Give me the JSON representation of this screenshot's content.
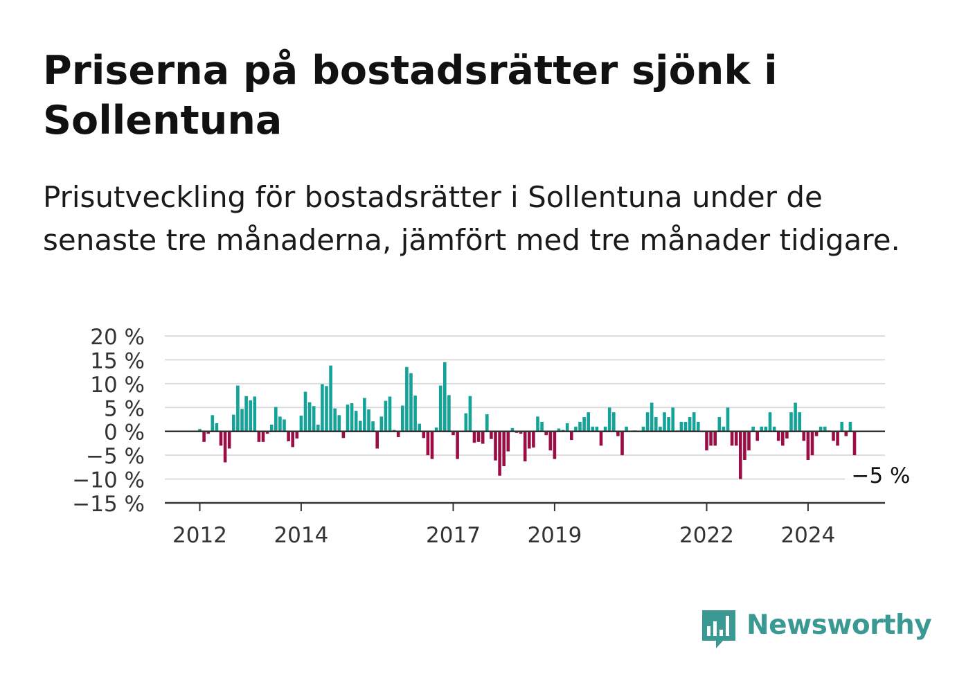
{
  "title": "Priserna på bostadsrätter sjönk i Sollentuna",
  "subtitle": "Prisutveckling för bostadsrätter i Sollentuna under de senaste tre månaderna, jämfört med tre månader tidigare.",
  "brand": {
    "name": "Newsworthy",
    "color": "#3a9a93",
    "icon": "newsworthy-bar-chart-icon"
  },
  "colors": {
    "positive": "#13a399",
    "negative": "#9b0d45",
    "grid": "#dcdcdc",
    "axis": "#333333"
  },
  "chart_data": {
    "type": "bar",
    "x_start": "2012-01",
    "x_step": "month",
    "ylim": [
      -15,
      20
    ],
    "yticks": [
      -15,
      -10,
      -5,
      0,
      5,
      10,
      15,
      20
    ],
    "ytick_labels": [
      "−15 %",
      "−10 %",
      "−5 %",
      "0 %",
      "5 %",
      "10 %",
      "15 %",
      "20 %"
    ],
    "xticks": [
      "2012",
      "2014",
      "2017",
      "2019",
      "2022",
      "2024"
    ],
    "grid": true,
    "annotation": {
      "text": "−5 %",
      "value": -5,
      "target": "last"
    },
    "values": [
      0.5,
      -2.2,
      -0.5,
      3.4,
      1.7,
      -3.0,
      -6.5,
      -3.6,
      3.5,
      9.6,
      4.7,
      7.4,
      6.5,
      7.3,
      -2.2,
      -2.2,
      -0.5,
      1.4,
      5.1,
      3.1,
      2.5,
      -2.1,
      -3.3,
      -1.5,
      3.3,
      8.3,
      6.1,
      5.3,
      1.4,
      9.9,
      9.5,
      13.8,
      4.8,
      3.4,
      -1.4,
      5.6,
      5.9,
      4.3,
      2.2,
      7.0,
      4.6,
      2.1,
      -3.6,
      3.1,
      6.4,
      7.3,
      0.3,
      -1.2,
      5.4,
      13.5,
      12.2,
      7.5,
      1.6,
      -1.4,
      -5.0,
      -5.8,
      0.8,
      9.6,
      14.5,
      7.6,
      -0.8,
      -5.8,
      0.1,
      3.8,
      7.4,
      -2.4,
      -2.2,
      -2.6,
      3.6,
      -1.6,
      -6.1,
      -9.3,
      -7.3,
      -4.2,
      0.7,
      -0.3,
      -0.5,
      -6.3,
      -3.6,
      -3.4,
      3.1,
      2.0,
      -0.8,
      -4.0,
      -5.8,
      0.6,
      0.3,
      1.7,
      -1.8,
      1.0,
      2.0,
      3.0,
      4.0,
      1.0,
      1.0,
      -3.0,
      1.0,
      5.0,
      4.0,
      -1.0,
      -5.0,
      1.0,
      0.1,
      0.2,
      0.1,
      1.0,
      4.0,
      6.0,
      3.0,
      1.0,
      4.0,
      3.0,
      5.0,
      0.2,
      2.0,
      2.0,
      3.0,
      4.0,
      2.0,
      -0.2,
      -4.0,
      -3.0,
      -3.0,
      3.0,
      1.0,
      5.0,
      -3.0,
      -3.0,
      -10.0,
      -6.0,
      -4.0,
      1.0,
      -2.0,
      1.0,
      1.0,
      4.0,
      1.0,
      -2.0,
      -3.0,
      -1.5,
      4.0,
      6.0,
      4.0,
      -2.0,
      -6.0,
      -5.0,
      -1.0,
      1.0,
      1.0,
      0.2,
      -2.0,
      -3.0,
      2.0,
      -1.0,
      2.0,
      -5.0
    ]
  }
}
